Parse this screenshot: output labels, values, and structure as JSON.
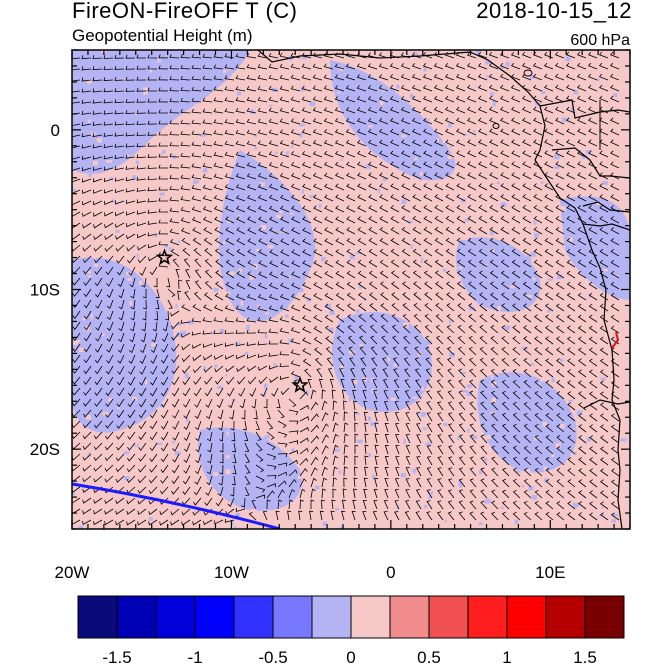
{
  "header": {
    "title": "FireON-FireOFF T (C)",
    "subtitle": "Geopotential Height (m)",
    "datetime": "2018-10-15_12",
    "level": "600 hPa"
  },
  "map": {
    "lon_range": [
      -20,
      15
    ],
    "lat_range": [
      -25,
      5
    ],
    "x_tick_labels": [
      "20W",
      "10W",
      "0",
      "10E"
    ],
    "y_tick_labels": [
      "0",
      "10S",
      "20S"
    ],
    "markers": [
      {
        "name": "star",
        "lon": -14.2,
        "lat": -8.0
      },
      {
        "name": "star",
        "lon": -5.7,
        "lat": -16.0
      }
    ],
    "colors": {
      "positive_fill": "#f6c8c8",
      "negative_fill": "#b4b4f5",
      "coastline": "#000000",
      "wind_barbs": "#000000",
      "contour_line": "#1a1aff"
    }
  },
  "colorbar": {
    "labels": [
      "-1.5",
      "-1",
      "-0.5",
      "0",
      "0.5",
      "1",
      "1.5"
    ],
    "label_values": [
      -1.5,
      -1,
      -0.5,
      0,
      0.5,
      1,
      1.5
    ],
    "colors": [
      "#0a0a7a",
      "#0000b4",
      "#0000d8",
      "#0000ff",
      "#3232ff",
      "#7878ff",
      "#b4b4f5",
      "#f6c8c8",
      "#f08c8c",
      "#f05050",
      "#ff1e1e",
      "#ff0000",
      "#b40000",
      "#780000"
    ]
  }
}
